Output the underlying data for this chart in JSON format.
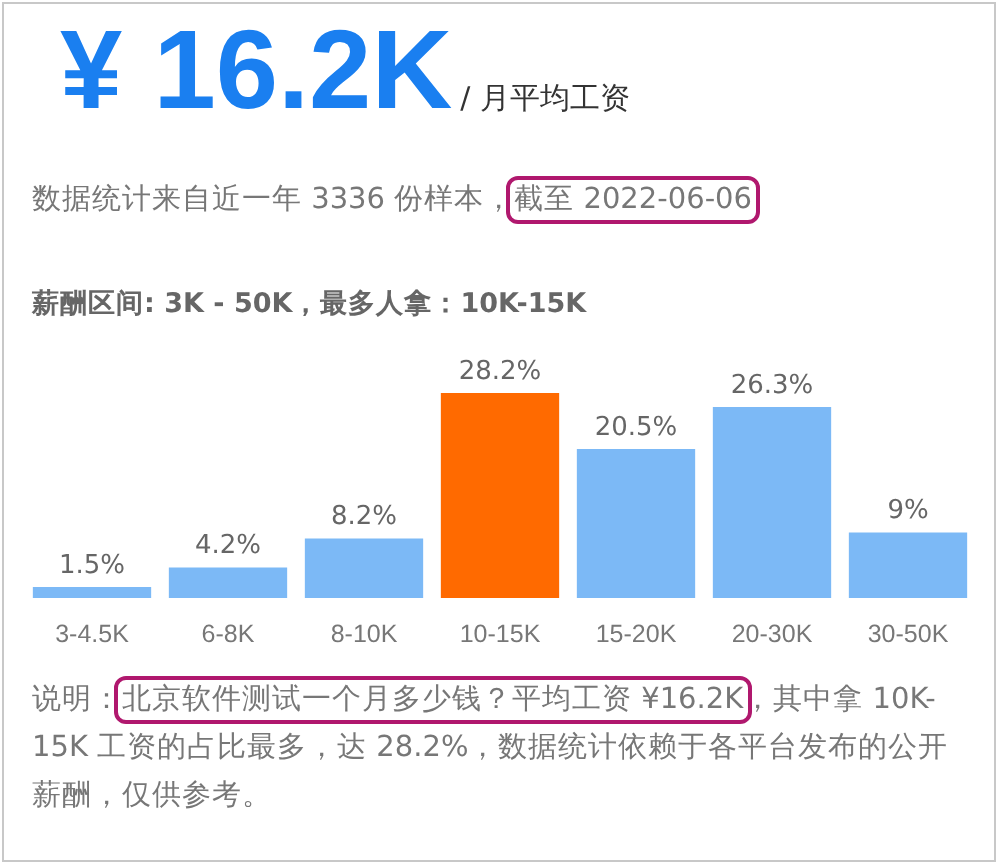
{
  "chart_data": {
    "type": "bar",
    "title": "¥ 16.2K",
    "subtitle": "/ 月平均工资",
    "annotations": [
      "数据统计来自近一年 3336 份样本，",
      "截至 2022-06-06",
      "薪酬区间: 3K - 50K，最多人拿：10K-15K",
      "说明：",
      "北京软件测试一个月多少钱？平均工资 ¥16.2K",
      "，其中拿 10K-15K 工资的占比最多，达 28.2%，数据统计依赖于各平台发布的公开薪酬，仅供参考。"
    ],
    "categories": [
      "3-4.5K",
      "6-8K",
      "8-10K",
      "10-15K",
      "15-20K",
      "20-30K",
      "30-50K"
    ],
    "values": [
      1.5,
      4.2,
      8.2,
      28.2,
      20.5,
      26.3,
      9
    ],
    "colors": [
      "#7cb9f6",
      "#7cb9f6",
      "#7cb9f6",
      "#ff6a00",
      "#7cb9f6",
      "#7cb9f6",
      "#7cb9f6"
    ],
    "value_labels": [
      "1.5%",
      "4.2%",
      "8.2%",
      "28.2%",
      "20.5%",
      "26.3%",
      "9%"
    ]
  }
}
